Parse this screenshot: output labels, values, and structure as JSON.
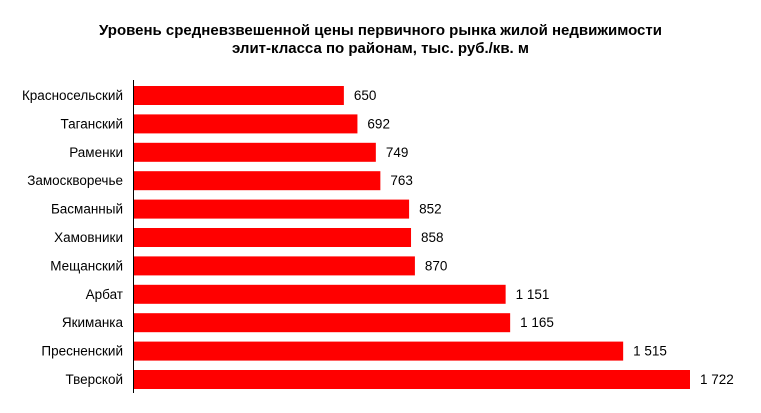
{
  "chart_data": {
    "type": "bar",
    "orientation": "horizontal",
    "title_lines": [
      "Уровень средневзвешенной цены первичного рынка жилой недвижимости",
      "элит-класса по районам, тыс. руб./кв. м"
    ],
    "categories": [
      "Красносельский",
      "Таганский",
      "Раменки",
      "Замоскворечье",
      "Басманный",
      "Хамовники",
      "Мещанский",
      "Арбат",
      "Якиманка",
      "Пресненский",
      "Тверской"
    ],
    "values": [
      650,
      692,
      749,
      763,
      852,
      858,
      870,
      1151,
      1165,
      1515,
      1722
    ],
    "value_labels": [
      "650",
      "692",
      "749",
      "763",
      "852",
      "858",
      "870",
      "1 151",
      "1 165",
      "1 515",
      "1 722"
    ],
    "bar_color": "#ff0000",
    "grid": false,
    "legend": "none"
  }
}
